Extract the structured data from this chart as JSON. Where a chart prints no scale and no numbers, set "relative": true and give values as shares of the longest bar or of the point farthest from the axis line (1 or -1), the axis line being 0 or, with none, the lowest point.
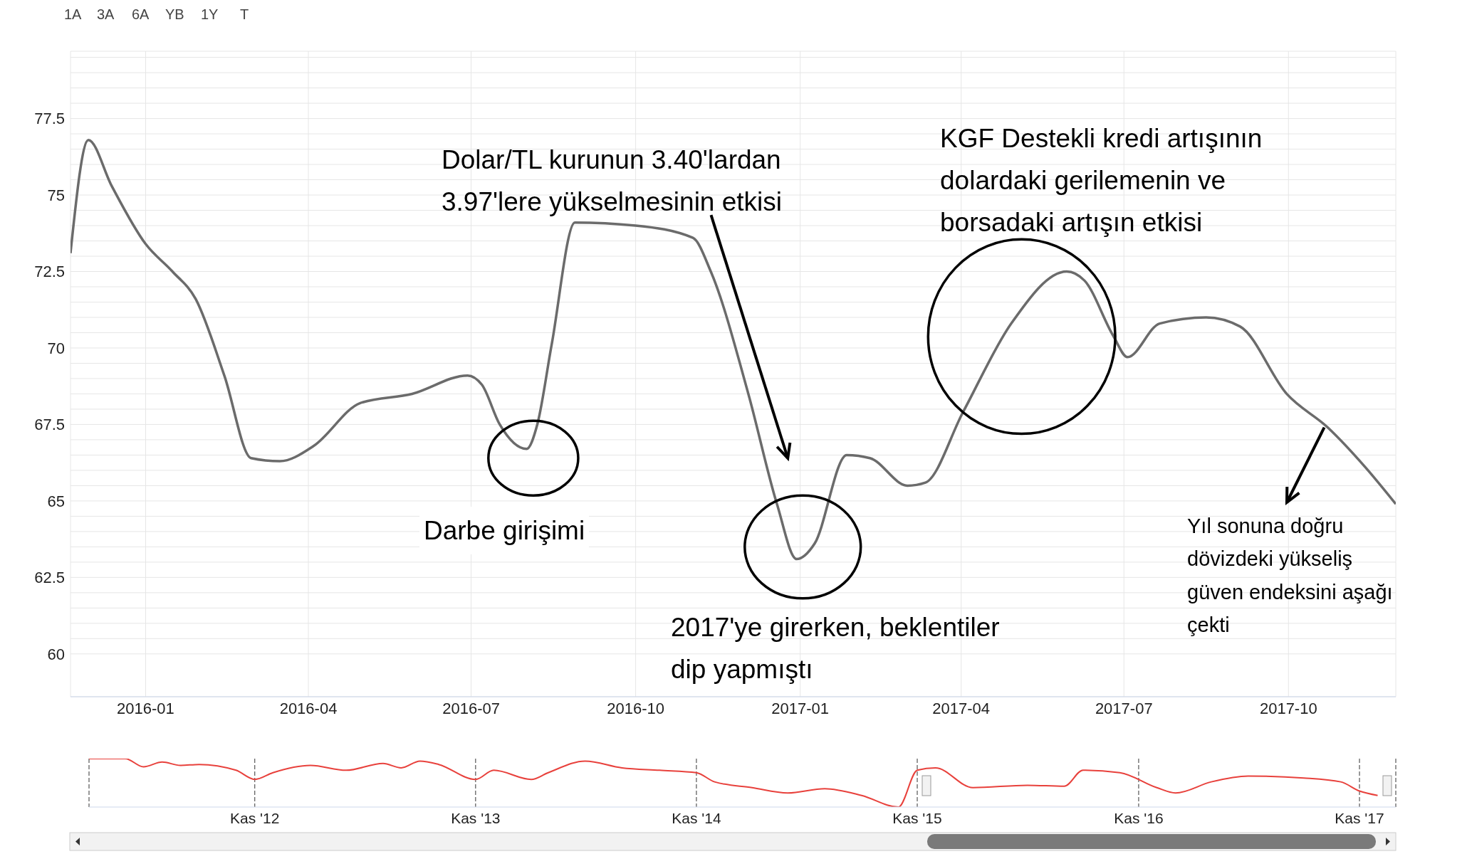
{
  "chart_data": [
    {
      "type": "line",
      "annotations": [
        "Dolar/TL kurunun 3.40'lardan\n3.97'lere yükselmesinin etkisi",
        "KGF Destekli kredi artışının\ndolardaki gerilemenin ve\nborsadaki artışın etkisi",
        "Darbe girişimi",
        "2017'ye girerken, beklentiler\ndip yapmıştı",
        {
          "text": "Yıl sonuna doğru\ndövizdeki yükseliş\ngüven endeksini aşağı\nçekti",
          "x": "2017-10-21",
          "y": 67.4
        },
        "1A",
        "3A",
        "6A",
        "YB",
        "1Y",
        "T"
      ],
      "x": [
        "2015-11-20",
        "2015-11-30",
        "2015-12-13",
        "2016-01-01",
        "2016-01-16",
        "2016-01-29",
        "2016-02-14",
        "2016-02-29",
        "2016-03-16",
        "2016-04-04",
        "2016-04-30",
        "2016-05-29",
        "2016-06-29",
        "2016-07-07",
        "2016-07-17",
        "2016-08-01",
        "2016-08-07",
        "2016-08-15",
        "2016-08-28",
        "2016-10-01",
        "2016-11-02",
        "2016-11-12",
        "2016-12-03",
        "2016-12-19",
        "2016-12-30",
        "2017-01-09",
        "2017-01-27",
        "2017-02-09",
        "2017-03-02",
        "2017-03-12",
        "2017-04-02",
        "2017-04-29",
        "2017-05-30",
        "2017-06-09",
        "2017-06-25",
        "2017-07-03",
        "2017-07-21",
        "2017-08-16",
        "2017-09-04",
        "2017-09-30",
        "2017-10-23",
        "2017-11-13",
        "2017-11-30"
      ],
      "series": [
        {
          "color": "#6b6b6b",
          "values": [
            73.1,
            76.8,
            75.3,
            73.4,
            72.5,
            71.6,
            69.1,
            66.4,
            66.3,
            66.8,
            68.2,
            68.5,
            69.1,
            68.8,
            67.5,
            66.7,
            67.5,
            70.1,
            74.1,
            74.0,
            73.6,
            72.5,
            68.5,
            64.9,
            63.1,
            63.6,
            66.5,
            66.4,
            65.5,
            65.6,
            67.9,
            70.8,
            72.5,
            72.2,
            70.4,
            69.7,
            70.8,
            71.0,
            70.7,
            68.5,
            67.4,
            66.1,
            64.9
          ]
        }
      ],
      "xlim": [
        "2015-11-20",
        "2017-11-30"
      ],
      "xticks": [
        "2016-01",
        "2016-04",
        "2016-07",
        "2016-10",
        "2017-01",
        "2017-04",
        "2017-07",
        "2017-10"
      ],
      "ylim": [
        58.6,
        79.7
      ],
      "yticks": [
        60,
        {
          "value": 60.5,
          "label": null
        },
        {
          "value": 61,
          "label": null
        },
        {
          "value": 61.5,
          "label": null
        },
        {
          "value": 62,
          "label": null
        },
        62.5,
        {
          "value": 63,
          "label": null
        },
        {
          "value": 63.5,
          "label": null
        },
        {
          "value": 64,
          "label": null
        },
        {
          "value": 64.5,
          "label": null
        },
        65,
        {
          "value": 65.5,
          "label": null
        },
        {
          "value": 66,
          "label": null
        },
        {
          "value": 66.5,
          "label": null
        },
        {
          "value": 67,
          "label": null
        },
        67.5,
        {
          "value": 68,
          "label": null
        },
        {
          "value": 68.5,
          "label": null
        },
        {
          "value": 69,
          "label": null
        },
        {
          "value": 69.5,
          "label": null
        },
        70,
        {
          "value": 70.5,
          "label": null
        },
        {
          "value": 71,
          "label": null
        },
        {
          "value": 71.5,
          "label": null
        },
        {
          "value": 72,
          "label": null
        },
        72.5,
        {
          "value": 73,
          "label": null
        },
        {
          "value": 73.5,
          "label": null
        },
        {
          "value": 74,
          "label": null
        },
        {
          "value": 74.5,
          "label": null
        },
        75,
        {
          "value": 75.5,
          "label": null
        },
        {
          "value": 76,
          "label": null
        },
        {
          "value": 76.5,
          "label": null
        },
        {
          "value": 77,
          "label": null
        },
        77.5,
        {
          "value": 78,
          "label": null
        },
        {
          "value": 78.5,
          "label": null
        },
        {
          "value": 79,
          "label": null
        },
        {
          "value": 79.5,
          "label": null
        }
      ],
      "grid": true,
      "marker": "none",
      "line_style": "solid"
    },
    {
      "type": "line",
      "relative": true,
      "tick_labels": "x",
      "grid": "x",
      "marker": "none",
      "line_style": "solid",
      "x": [
        "2012-02",
        "2012-04",
        "2012-05",
        "2012-06",
        "2012-07",
        "2012-08",
        "2012-10",
        "2012-11",
        "2012-12",
        "2013-02",
        "2013-04",
        "2013-06",
        "2013-07",
        "2013-08",
        "2013-09",
        "2013-11",
        "2013-12",
        "2014-02",
        "2014-03",
        "2014-05",
        "2014-07",
        "2014-09",
        "2014-11",
        "2014-12",
        "2015-02",
        "2015-04",
        "2015-06",
        "2015-08",
        "2015-10",
        "2015-11",
        "2015-12",
        "2016-02",
        "2016-05",
        "2016-07",
        "2016-08",
        "2016-10",
        "2016-12",
        "2017-01",
        "2017-03",
        "2017-05",
        "2017-08",
        "2017-10",
        "2017-11",
        "2017-12"
      ],
      "series": [
        {
          "color": "#e8413c",
          "values": [
            1.0,
            1.0,
            0.83,
            0.93,
            0.86,
            0.88,
            0.76,
            0.57,
            0.71,
            0.86,
            0.76,
            0.9,
            0.81,
            0.95,
            0.88,
            0.57,
            0.76,
            0.57,
            0.71,
            0.95,
            0.81,
            0.76,
            0.71,
            0.52,
            0.4,
            0.29,
            0.38,
            0.24,
            0.0,
            0.76,
            0.81,
            0.4,
            0.45,
            0.43,
            0.76,
            0.71,
            0.4,
            0.29,
            0.52,
            0.64,
            0.6,
            0.52,
            0.33,
            0.24
          ]
        }
      ],
      "xlim": [
        "2012-02",
        "2017-12-31"
      ],
      "xticks": [
        {
          "value": "2012-11",
          "label": "Kas '12"
        },
        {
          "value": "2013-11",
          "label": "Kas '13"
        },
        {
          "value": "2014-11",
          "label": "Kas '14"
        },
        {
          "value": "2015-11",
          "label": "Kas '15"
        },
        {
          "value": "2016-11",
          "label": "Kas '16"
        },
        {
          "value": "2017-11",
          "label": "Kas '17"
        }
      ]
    }
  ]
}
